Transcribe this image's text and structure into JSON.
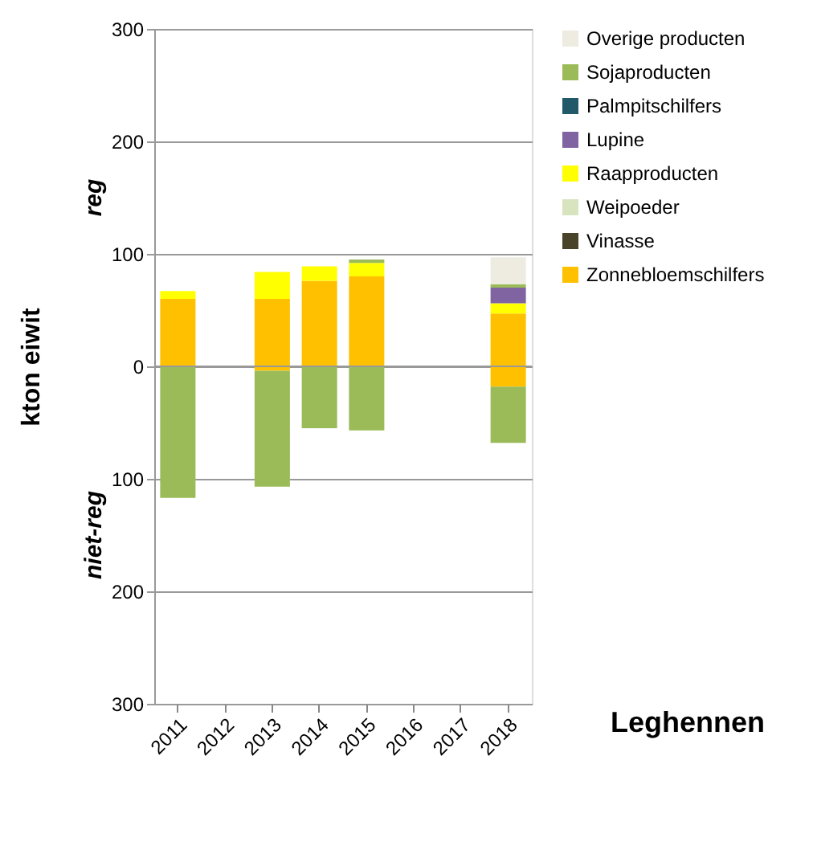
{
  "chart_data": {
    "type": "bar",
    "stacked": true,
    "title": "Leghennen",
    "ylabel": "kton eiwit",
    "annotations": [
      "reg",
      "niet-reg"
    ],
    "categories": [
      "2011",
      "2012",
      "2013",
      "2014",
      "2015",
      "2016",
      "2017",
      "2018"
    ],
    "series": [
      {
        "name": "Zonnebloemschilfers",
        "color": "#ffc000",
        "values": [
          60,
          null,
          60,
          76,
          80,
          null,
          null,
          47
        ]
      },
      {
        "name": "Vinasse",
        "color": "#494429",
        "values": [
          null,
          null,
          null,
          null,
          null,
          null,
          null,
          null
        ]
      },
      {
        "name": "Weipoeder",
        "color": "#d7e4bd",
        "values": [
          null,
          null,
          null,
          null,
          null,
          null,
          null,
          null
        ]
      },
      {
        "name": "Raapproducten",
        "color": "#ffff00",
        "values": [
          7,
          null,
          24,
          13,
          12,
          null,
          null,
          9
        ]
      },
      {
        "name": "Lupine",
        "color": "#8064a2",
        "values": [
          null,
          null,
          null,
          null,
          null,
          null,
          null,
          14
        ]
      },
      {
        "name": "Palmpitschilfers",
        "color": "#215968",
        "values": [
          null,
          null,
          null,
          null,
          null,
          null,
          null,
          null
        ]
      },
      {
        "name": "Sojaproducten",
        "color": "#9bbb59",
        "values": [
          null,
          null,
          null,
          null,
          3,
          null,
          null,
          3
        ]
      },
      {
        "name": "Overige producten",
        "color": "#eeece1",
        "values": [
          null,
          null,
          null,
          null,
          null,
          null,
          null,
          24
        ]
      },
      {
        "color": "#ffc000",
        "values": [
          null,
          null,
          -4,
          null,
          null,
          null,
          null,
          -18
        ]
      },
      {
        "color": "#9bbb59",
        "values": [
          -117,
          null,
          -103,
          -55,
          -57,
          null,
          null,
          -50
        ]
      }
    ],
    "ylim": [
      -300,
      300
    ],
    "yticks": [
      {
        "value": -300,
        "label": "300"
      },
      {
        "value": -200,
        "label": "200"
      },
      {
        "value": -100,
        "label": "100"
      },
      0,
      100,
      200,
      300
    ],
    "grid": "y",
    "legend": "right"
  }
}
